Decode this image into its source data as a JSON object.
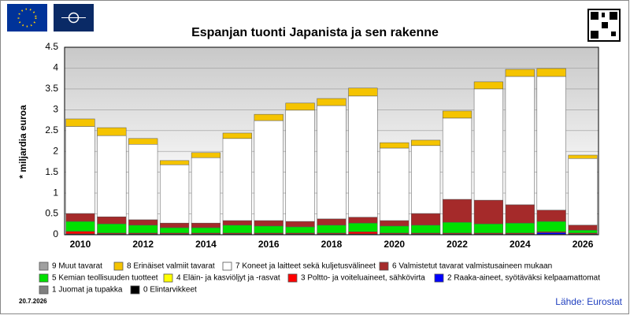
{
  "chart_data": {
    "type": "stacked-bar",
    "title": "Espanjan tuonti Japanista ja sen rakenne",
    "y_label": "* miljardia euroa",
    "date": "20.7.2026",
    "source": "Lähde: Eurostat",
    "categories": [
      "2010",
      null,
      "2012",
      null,
      "2014",
      null,
      "2016",
      null,
      "2018",
      null,
      "2020",
      null,
      "2022",
      null,
      "2024",
      null,
      "2026"
    ],
    "ylim": [
      0,
      4.5
    ],
    "yticks": [
      0,
      0.5,
      1,
      1.5,
      2,
      2.5,
      3,
      3.5,
      4,
      4.5
    ],
    "grid": true,
    "series": [
      {
        "name": "0 Elintarvikkeet",
        "color": "#000000",
        "values": [
          0.01,
          0.01,
          0.01,
          0.01,
          0.01,
          0.01,
          0.01,
          0.01,
          0.01,
          0.01,
          0.01,
          0.01,
          0.01,
          0.01,
          0.01,
          0.01,
          0.01
        ]
      },
      {
        "name": "1 Juomat ja tupakka",
        "color": "#808080",
        "values": [
          0,
          0,
          0,
          0,
          0,
          0,
          0,
          0,
          0,
          0,
          0,
          0,
          0,
          0,
          0,
          0,
          0
        ]
      },
      {
        "name": "2 Raaka-aineet, syötäväksi kelpaamattomat",
        "color": "#0000ff",
        "values": [
          0.01,
          0.01,
          0.01,
          0.01,
          0.01,
          0.01,
          0.01,
          0.01,
          0.01,
          0.01,
          0.01,
          0.01,
          0.01,
          0.01,
          0.01,
          0.04,
          0.01
        ]
      },
      {
        "name": "3 Poltto- ja voiteluaineet, sähkövirta",
        "color": "#ff0000",
        "values": [
          0.06,
          0.02,
          0.02,
          0.02,
          0.02,
          0.02,
          0.02,
          0.02,
          0.02,
          0.05,
          0.02,
          0.02,
          0.02,
          0.02,
          0.02,
          0.02,
          0.02
        ]
      },
      {
        "name": "4 Eläin- ja kasviöljyt ja -rasvat",
        "color": "#ffff00",
        "values": [
          0,
          0,
          0,
          0,
          0,
          0,
          0,
          0,
          0,
          0,
          0,
          0,
          0,
          0,
          0,
          0,
          0
        ]
      },
      {
        "name": "5 Kemian teollisuuden tuotteet",
        "color": "#00e000",
        "values": [
          0.24,
          0.22,
          0.19,
          0.13,
          0.13,
          0.19,
          0.17,
          0.15,
          0.19,
          0.21,
          0.17,
          0.19,
          0.26,
          0.22,
          0.24,
          0.25,
          0.07
        ]
      },
      {
        "name": "6 Valmistetut tavarat valmistusaineen mukaan",
        "color": "#a52a2a",
        "values": [
          0.19,
          0.17,
          0.13,
          0.11,
          0.11,
          0.11,
          0.13,
          0.13,
          0.15,
          0.14,
          0.13,
          0.28,
          0.55,
          0.57,
          0.44,
          0.27,
          0.12
        ]
      },
      {
        "name": "7 Koneet ja laitteet sekä kuljetusvälineet",
        "color": "#ffffff",
        "values": [
          2.09,
          1.95,
          1.81,
          1.4,
          1.57,
          1.97,
          2.4,
          2.67,
          2.72,
          2.91,
          1.74,
          1.63,
          1.95,
          2.67,
          3.08,
          3.21,
          1.6
        ]
      },
      {
        "name": "8 Erinäiset valmiit tavarat",
        "color": "#f5c400",
        "values": [
          0.18,
          0.19,
          0.14,
          0.1,
          0.12,
          0.13,
          0.15,
          0.17,
          0.17,
          0.19,
          0.13,
          0.13,
          0.17,
          0.17,
          0.17,
          0.19,
          0.08
        ]
      },
      {
        "name": "9 Muut tavarat",
        "color": "#a0a0a0",
        "values": [
          0,
          0,
          0,
          0,
          0,
          0,
          0,
          0,
          0,
          0,
          0,
          0,
          0,
          0,
          0,
          0,
          0
        ]
      }
    ]
  }
}
